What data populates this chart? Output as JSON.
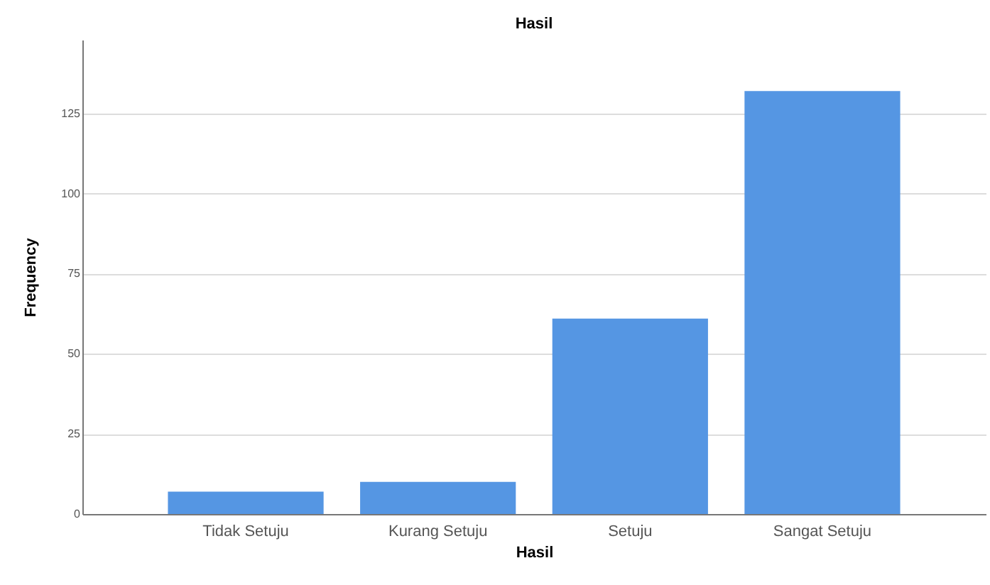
{
  "chart_data": {
    "type": "bar",
    "title": "Hasil",
    "xlabel": "Hasil",
    "ylabel": "Frequency",
    "categories": [
      "Tidak Setuju",
      "Kurang Setuju",
      "Setuju",
      "Sangat Setuju"
    ],
    "values": [
      7,
      10,
      61,
      132
    ],
    "color": "#5596e3",
    "ylim": [
      0,
      148
    ],
    "yticks": [
      0,
      25,
      50,
      75,
      100,
      125
    ],
    "grid": "y"
  }
}
